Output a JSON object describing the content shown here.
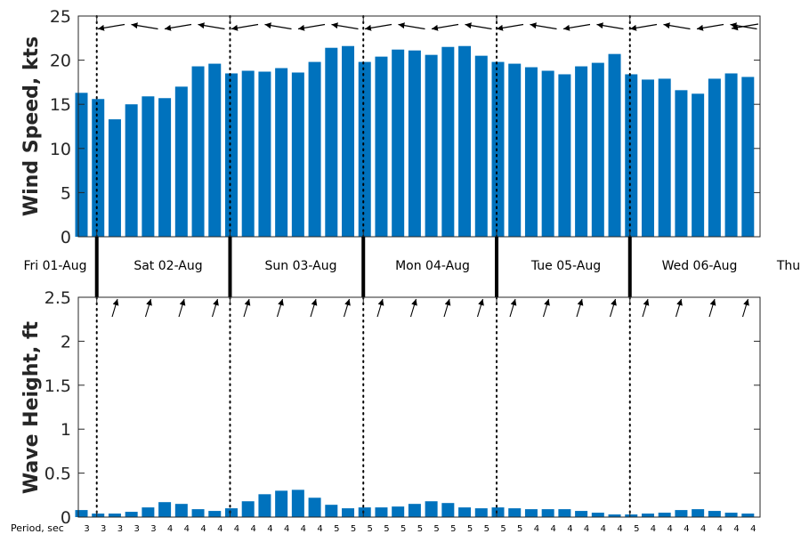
{
  "chart_data": [
    {
      "type": "bar",
      "ylabel": "Wind Speed, kts",
      "ylim": [
        0,
        25
      ],
      "yticks": [
        "0",
        "5",
        "10",
        "15",
        "20",
        "25"
      ],
      "ytick_values": [
        0,
        5,
        10,
        15,
        20,
        25
      ],
      "bar_color": "#0072BD",
      "arrow_color": "#000000",
      "direction_arrows": "wind direction arrows along the top, pointing roughly westward",
      "values": [
        16.3,
        15.6,
        13.3,
        15.0,
        15.9,
        15.7,
        17.0,
        19.3,
        19.6,
        18.5,
        18.8,
        18.7,
        19.1,
        18.6,
        19.8,
        21.4,
        21.6,
        19.8,
        20.4,
        21.2,
        21.1,
        20.6,
        21.5,
        21.6,
        20.5,
        19.8,
        19.6,
        19.2,
        18.8,
        18.4,
        19.3,
        19.7,
        20.7,
        18.4,
        17.8,
        17.9,
        16.6,
        16.2,
        17.9,
        18.5,
        18.1
      ]
    },
    {
      "type": "bar",
      "ylabel": "Wave Height, ft",
      "ylim": [
        0,
        2.5
      ],
      "yticks": [
        "0",
        "0.5",
        "1",
        "1.5",
        "2",
        "2.5"
      ],
      "ytick_values": [
        0,
        0.5,
        1,
        1.5,
        2,
        2.5
      ],
      "bar_color": "#0072BD",
      "arrow_color": "#000000",
      "direction_arrows": "wave direction arrows along the top, pointing upward to the north-northeast",
      "values": [
        0.08,
        0.04,
        0.04,
        0.06,
        0.11,
        0.17,
        0.15,
        0.09,
        0.07,
        0.1,
        0.18,
        0.26,
        0.3,
        0.31,
        0.22,
        0.14,
        0.1,
        0.11,
        0.11,
        0.12,
        0.15,
        0.18,
        0.16,
        0.11,
        0.1,
        0.11,
        0.1,
        0.09,
        0.09,
        0.09,
        0.07,
        0.05,
        0.03,
        0.03,
        0.04,
        0.05,
        0.08,
        0.09,
        0.07,
        0.05,
        0.04
      ]
    }
  ],
  "days": [
    "Fri 01-Aug",
    "Sat 02-Aug",
    "Sun 03-Aug",
    "Mon 04-Aug",
    "Tue 05-Aug",
    "Wed 06-Aug",
    "Thu"
  ],
  "period": {
    "title": "Period, sec",
    "values": [
      "3",
      "3",
      "3",
      "3",
      "3",
      "4",
      "4",
      "4",
      "4",
      "4",
      "4",
      "4",
      "4",
      "4",
      "4",
      "5",
      "5",
      "5",
      "5",
      "5",
      "5",
      "5",
      "5",
      "5",
      "5",
      "5",
      "5",
      "4",
      "4",
      "4",
      "4",
      "4",
      "4",
      "5",
      "4",
      "4",
      "4",
      "4",
      "4",
      "4",
      "4"
    ]
  }
}
